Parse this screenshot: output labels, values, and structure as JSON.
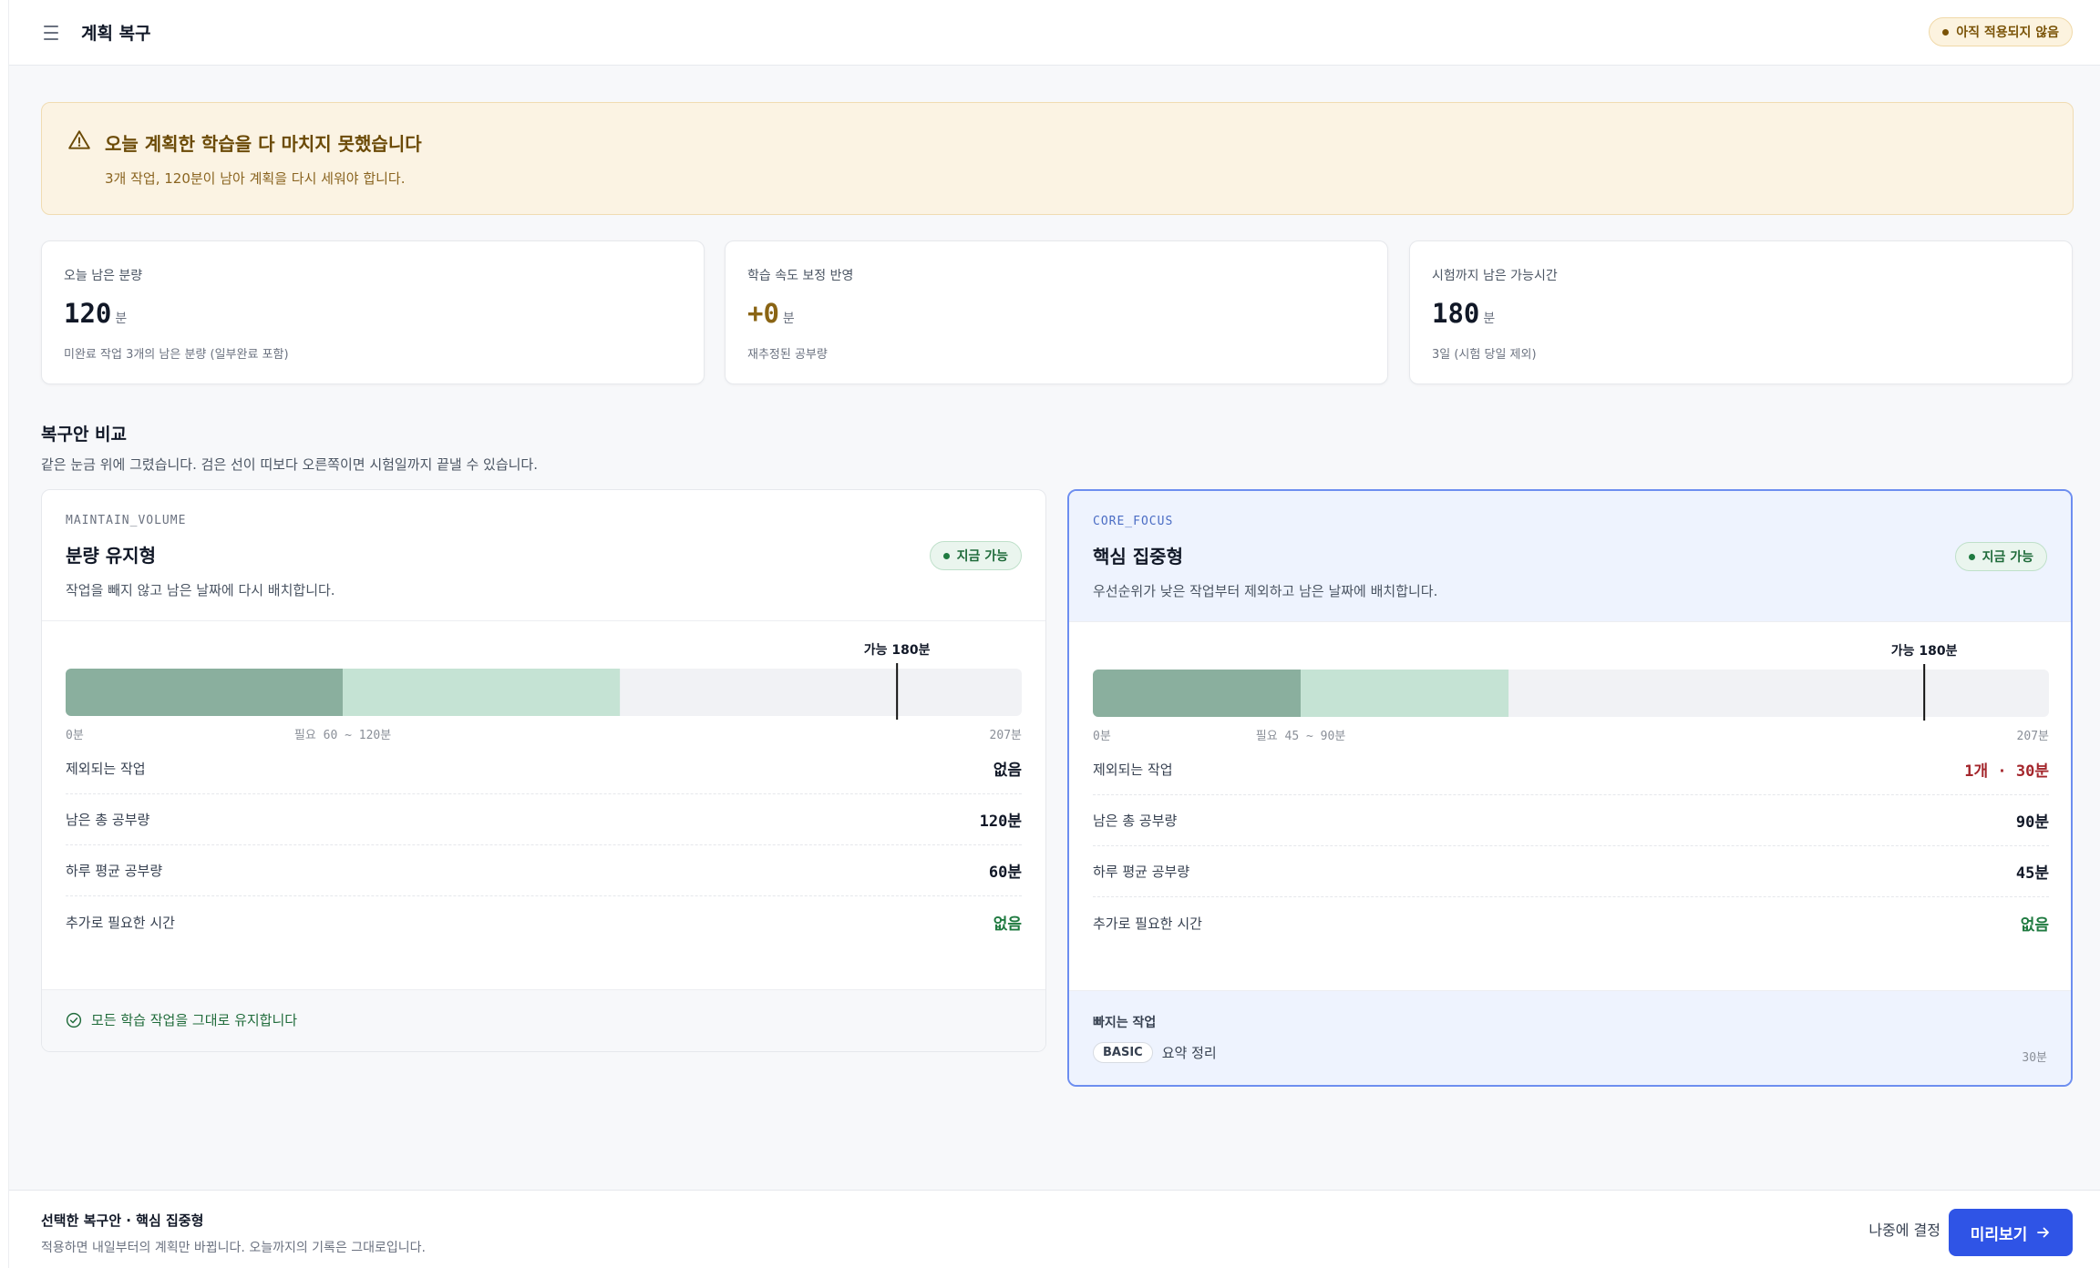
{
  "header": {
    "title": "계획 복구",
    "status": "아직 적용되지 않음"
  },
  "warning": {
    "title": "오늘 계획한 학습을 다 마치지 못했습니다",
    "subtitle": "3개 작업, 120분이 남아 계획을 다시 세워야 합니다."
  },
  "stats": [
    {
      "label": "오늘 남은 분량",
      "value": "120",
      "unit": "분",
      "note": "미완료 작업 3개의 남은 분량 (일부완료 포함)"
    },
    {
      "label": "학습 속도 보정 반영",
      "value": "+0",
      "unit": "분",
      "note": "재추정된 공부량"
    },
    {
      "label": "시험까지 남은 가능시간",
      "value": "180",
      "unit": "분",
      "note": "3일 (시험 당일 제외)"
    }
  ],
  "compare": {
    "title": "복구안 비교",
    "subtitle": "같은 눈금 위에 그렸습니다. 검은 선이 띠보다 오른쪽이면 시험일까지 끝낼 수 있습니다."
  },
  "options": [
    {
      "code": "MAINTAIN_VOLUME",
      "name": "분량 유지형",
      "desc": "작업을 빼지 않고 남은 날짜에 다시 배치합니다.",
      "badge": "지금 가능",
      "gauge": {
        "min": 0,
        "max": 207,
        "need_low": 60,
        "need_high": 120,
        "capacity": 180,
        "cap_label": "가능 180분",
        "axis_start": "0분",
        "axis_mid": "필요 60 ~ 120분",
        "axis_end": "207분"
      },
      "rows": [
        {
          "k": "제외되는 작업",
          "v": "없음",
          "tone": ""
        },
        {
          "k": "남은 총 공부량",
          "v": "120분",
          "tone": ""
        },
        {
          "k": "하루 평균 공부량",
          "v": "60분",
          "tone": ""
        },
        {
          "k": "추가로 필요한 시간",
          "v": "없음",
          "tone": "green"
        }
      ],
      "footer_ok": "모든 학습 작업을 그대로 유지합니다"
    },
    {
      "code": "CORE_FOCUS",
      "name": "핵심 집중형",
      "desc": "우선순위가 낮은 작업부터 제외하고 남은 날짜에 배치합니다.",
      "badge": "지금 가능",
      "gauge": {
        "min": 0,
        "max": 207,
        "need_low": 45,
        "need_high": 90,
        "capacity": 180,
        "cap_label": "가능 180분",
        "axis_start": "0분",
        "axis_mid": "필요 45 ~ 90분",
        "axis_end": "207분"
      },
      "rows": [
        {
          "k": "제외되는 작업",
          "v": "1개 · 30분",
          "tone": "red"
        },
        {
          "k": "남은 총 공부량",
          "v": "90분",
          "tone": ""
        },
        {
          "k": "하루 평균 공부량",
          "v": "45분",
          "tone": ""
        },
        {
          "k": "추가로 필요한 시간",
          "v": "없음",
          "tone": "green"
        }
      ],
      "footer_title": "빠지는 작업",
      "dropped": {
        "tag": "BASIC",
        "name": "요약 정리",
        "min": "30분"
      }
    }
  ],
  "bottom": {
    "selected": "선택한 복구안 · 핵심 집중형",
    "note": "적용하면 내일부터의 계획만 바뀝니다. 오늘까지의 기록은 그대로입니다.",
    "later": "나중에 결정",
    "preview": "미리보기"
  },
  "colors": {
    "bar_low": "#8aaf9e",
    "bar_high": "#c5e3d4",
    "track": "#f1f2f5",
    "cap_line": "#111111",
    "accent": "#2f54e6"
  }
}
